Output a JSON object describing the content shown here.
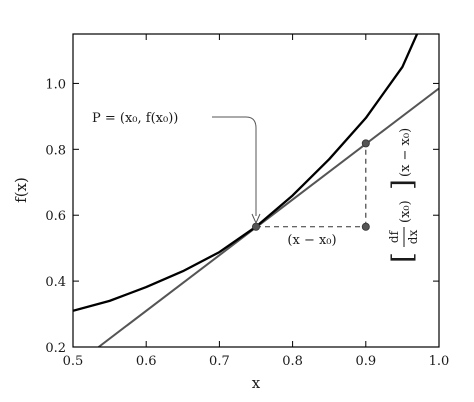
{
  "chart_data": {
    "type": "line",
    "title": "",
    "xlabel": "x",
    "ylabel": "f(x)",
    "xlim": [
      0.5,
      1.0
    ],
    "ylim": [
      0.2,
      1.15
    ],
    "x_ticks": [
      0.5,
      0.6,
      0.7,
      0.8,
      0.9,
      1.0
    ],
    "x_tick_labels": [
      "0.5",
      "0.6",
      "0.7",
      "0.8",
      "0.9",
      "1.0"
    ],
    "y_ticks": [
      0.2,
      0.4,
      0.6,
      0.8,
      1.0
    ],
    "y_tick_labels": [
      "0.2",
      "0.4",
      "0.6",
      "0.8",
      "1.0"
    ],
    "grid": false,
    "series": [
      {
        "color": "#000000",
        "x": [
          0.5,
          0.55,
          0.6,
          0.65,
          0.7,
          0.75,
          0.8,
          0.85,
          0.9,
          0.95,
          0.97
        ],
        "y": [
          0.31,
          0.34,
          0.382,
          0.43,
          0.488,
          0.565,
          0.66,
          0.77,
          0.895,
          1.05,
          1.15
        ]
      },
      {
        "color": "#555555",
        "x": [
          0.535,
          1.0
        ],
        "y": [
          0.2,
          0.985
        ]
      }
    ],
    "points": [
      {
        "x": 0.75,
        "y": 0.565
      },
      {
        "x": 0.9,
        "y": 0.565
      },
      {
        "x": 0.9,
        "y": 0.818
      }
    ],
    "annotations": {
      "point_label": "P = (x₀, f(x₀))",
      "dx_label": "(x − x₀)",
      "dy_prefix": "(x − x₀)",
      "deriv_num": "df",
      "deriv_den": "dx",
      "deriv_arg": "(x₀)"
    }
  }
}
